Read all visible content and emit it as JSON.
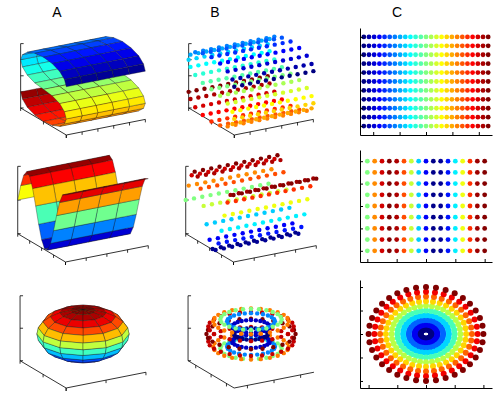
{
  "column_titles": [
    "A",
    "B",
    "C"
  ],
  "chart_data": [
    {
      "type": "surface",
      "profile_x": [
        1,
        0.92,
        0.71,
        0.38,
        0,
        -0.38,
        -0.71,
        -0.92,
        -1,
        -0.92,
        -0.71,
        -0.38,
        0,
        0.38,
        0.71,
        0.92,
        1,
        0.92,
        0.71,
        0.38,
        0,
        -0.38,
        -0.71,
        -0.92,
        -1
      ],
      "profile_z": [
        1,
        1.38,
        1.71,
        1.92,
        2,
        1.92,
        1.71,
        1.38,
        1,
        0.62,
        0.29,
        0.08,
        0,
        -0.08,
        -0.29,
        -0.62,
        -1,
        -1.38,
        -1.71,
        -1.92,
        -2,
        -1.92,
        -1.71,
        -1.38,
        -1
      ],
      "c": [
        -4.71,
        -4.32,
        -3.93,
        -3.53,
        -3.14,
        -2.75,
        -2.36,
        -1.96,
        -1.57,
        -1.18,
        -0.79,
        -0.39,
        0,
        0.39,
        0.79,
        1.18,
        1.57,
        1.96,
        2.36,
        2.75,
        3.14,
        3.53,
        3.93,
        4.32,
        4.71
      ],
      "depth": [
        0,
        1,
        2,
        3,
        4,
        5
      ],
      "xlim": [
        -1,
        1
      ],
      "ylim": [
        0,
        5
      ],
      "zlim": [
        -2,
        2
      ],
      "xticks": [
        -1,
        0,
        1
      ],
      "yticks": [
        0,
        1,
        2,
        3,
        4,
        5
      ],
      "zticks": [
        -2,
        -1,
        0,
        1,
        2
      ],
      "clim": [
        -4.71,
        4.71
      ],
      "tick_labels": false
    },
    {
      "type": "surface",
      "profile_x": [
        1,
        0.92,
        0.71,
        0.38,
        0,
        -0.38,
        -0.71,
        -0.92,
        -1,
        -0.92,
        -0.71,
        -0.38,
        0,
        0.38,
        0.71,
        0.92,
        1,
        0.92,
        0.71,
        0.38,
        0,
        -0.38,
        -0.71,
        -0.92,
        -1
      ],
      "profile_z": [
        1,
        1.38,
        1.71,
        1.92,
        2,
        1.92,
        1.71,
        1.38,
        1,
        0.62,
        0.29,
        0.08,
        0,
        -0.08,
        -0.29,
        -0.62,
        -1,
        -1.38,
        -1.71,
        -1.92,
        -2,
        -1.92,
        -1.71,
        -1.38,
        -1
      ],
      "c": [
        -4.71,
        -4.32,
        -3.93,
        -3.53,
        -3.14,
        -2.75,
        -2.36,
        -1.96,
        -1.57,
        -1.18,
        -0.79,
        -0.39,
        0,
        0.39,
        0.79,
        1.18,
        1.57,
        1.96,
        2.36,
        2.75,
        3.14,
        3.53,
        3.93,
        4.32,
        4.71
      ],
      "depth": [
        0,
        0.5,
        1,
        1.5,
        2,
        2.5,
        3,
        3.5,
        4,
        4.5,
        5
      ],
      "xlim": [
        -1,
        1
      ],
      "ylim": [
        0,
        5
      ],
      "zlim": [
        -2,
        2
      ],
      "xticks": [
        -1,
        0,
        1
      ],
      "yticks": [
        0,
        1,
        2,
        3,
        4,
        5
      ],
      "zticks": [
        -2,
        -1,
        0,
        1,
        2
      ],
      "clim": [
        -4.71,
        4.71
      ],
      "marker": "circle",
      "tick_labels": false
    },
    {
      "type": "grid",
      "x": [
        -4.71,
        -4.32,
        -3.93,
        -3.53,
        -3.14,
        -2.75,
        -2.36,
        -1.96,
        -1.57,
        -1.18,
        -0.79,
        -0.39,
        0,
        0.39,
        0.79,
        1.18,
        1.57,
        1.96,
        2.36,
        2.75,
        3.14,
        3.53,
        3.93,
        4.32,
        4.71
      ],
      "y": [
        0,
        0.5,
        1,
        1.5,
        2,
        2.5,
        3,
        3.5,
        4,
        4.5,
        5
      ],
      "xlim": [
        -5,
        5
      ],
      "ylim": [
        -0.5,
        5.5
      ],
      "xticks": [
        -4,
        -2,
        0,
        2,
        4
      ],
      "yticks": [
        0,
        1,
        2,
        3,
        4,
        5
      ],
      "clim": [
        -4.71,
        4.71
      ],
      "marker": "circle",
      "tick_labels": false
    },
    {
      "type": "surface",
      "profile_x": [
        0,
        0.5,
        1,
        1.5,
        2,
        2.5,
        3,
        3.5,
        4,
        4.5,
        5,
        5.5,
        6,
        6.5,
        7,
        7.5,
        8
      ],
      "profile_z": [
        0,
        0.48,
        0.84,
        1,
        0.91,
        0.6,
        0.14,
        -0.35,
        -0.76,
        -0.98,
        -0.96,
        -0.71,
        -0.28,
        0.22,
        0.66,
        0.94,
        0.99
      ],
      "depth": [
        0,
        1,
        2,
        3,
        4
      ],
      "xlim": [
        0,
        8
      ],
      "ylim": [
        0,
        4
      ],
      "zlim": [
        -1,
        1
      ],
      "xticks": [
        0,
        2,
        4,
        6,
        8
      ],
      "yticks": [
        0,
        1,
        2,
        3,
        4
      ],
      "zticks": [
        -1,
        0,
        1
      ],
      "clim": [
        -1,
        1
      ],
      "tick_labels": false
    },
    {
      "type": "surface",
      "profile_x": [
        0,
        0.5,
        1,
        1.5,
        2,
        2.5,
        3,
        3.5,
        4,
        4.5,
        5,
        5.5,
        6,
        6.5,
        7,
        7.5,
        8
      ],
      "profile_z": [
        0,
        0.48,
        0.84,
        1,
        0.91,
        0.6,
        0.14,
        -0.35,
        -0.76,
        -0.98,
        -0.96,
        -0.71,
        -0.28,
        0.22,
        0.66,
        0.94,
        0.99
      ],
      "depth": [
        0,
        0.4,
        0.8,
        1.2,
        1.6,
        2,
        2.4,
        2.8,
        3.2,
        3.6,
        4
      ],
      "xlim": [
        0,
        8
      ],
      "ylim": [
        0,
        4
      ],
      "zlim": [
        -1,
        1
      ],
      "xticks": [
        0,
        2,
        4,
        6,
        8
      ],
      "yticks": [
        0,
        1,
        2,
        3,
        4
      ],
      "zticks": [
        -1,
        0,
        1
      ],
      "clim": [
        -1,
        1
      ],
      "marker": "circle",
      "tick_labels": false
    },
    {
      "type": "grid",
      "x": [
        0,
        0.5,
        1,
        1.5,
        2,
        2.5,
        3,
        3.5,
        4,
        4.5,
        5,
        5.5,
        6,
        6.5,
        7,
        7.5,
        8
      ],
      "y": [
        0,
        0.5,
        1,
        1.5,
        2,
        2.5,
        3,
        3.5,
        4
      ],
      "c": [
        0,
        0.48,
        0.84,
        1,
        0.91,
        0.6,
        0.14,
        -0.35,
        -0.76,
        -0.98,
        -0.96,
        -0.71,
        -0.28,
        0.22,
        0.66,
        0.94,
        0.99
      ],
      "xlim": [
        -0.5,
        8.5
      ],
      "ylim": [
        -0.5,
        4.5
      ],
      "xticks": [
        0,
        2,
        4,
        6,
        8
      ],
      "yticks": [
        0,
        1,
        2,
        3,
        4
      ],
      "clim": [
        -1,
        1
      ],
      "marker": "circle",
      "tick_labels": false
    },
    {
      "type": "revolution",
      "profile_r": [
        0,
        0.26,
        0.5,
        0.71,
        0.87,
        0.97,
        1,
        0.97,
        0.87,
        0.71,
        0.5,
        0.26,
        0
      ],
      "profile_z": [
        -0.75,
        -0.72,
        -0.65,
        -0.53,
        -0.38,
        -0.19,
        0,
        0.19,
        0.38,
        0.53,
        0.65,
        0.72,
        0.75
      ],
      "theta": [
        0,
        30,
        60,
        90,
        120,
        150,
        180,
        210,
        240,
        270,
        300,
        330,
        360
      ],
      "xlim": [
        -1,
        1
      ],
      "ylim": [
        -1,
        1
      ],
      "zlim": [
        -1,
        1
      ],
      "xticks": [
        -1,
        0,
        1
      ],
      "yticks": [
        -1,
        0,
        1
      ],
      "zticks": [
        -1,
        0,
        1
      ],
      "clim": [
        -0.75,
        0.75
      ],
      "tick_labels": false
    },
    {
      "type": "revolution",
      "profile_r": [
        1.45,
        1.39,
        1.23,
        1,
        0.78,
        0.61,
        0.55,
        0.61,
        0.78,
        1,
        1.23,
        1.39
      ],
      "profile_z": [
        0,
        0.23,
        0.39,
        0.45,
        0.39,
        0.23,
        0,
        -0.23,
        -0.39,
        -0.45,
        -0.39,
        -0.23
      ],
      "c": [
        1.45,
        1.39,
        1.23,
        1,
        0.78,
        0.61,
        0.55,
        0.61,
        0.78,
        1,
        1.23,
        1.39
      ],
      "theta": [
        0,
        15,
        30,
        45,
        60,
        75,
        90,
        105,
        120,
        135,
        150,
        165,
        180,
        195,
        210,
        225,
        240,
        255,
        270,
        285,
        300,
        315,
        330,
        345
      ],
      "xlim": [
        -1.5,
        1.5
      ],
      "ylim": [
        -1.5,
        1.5
      ],
      "zlim": [
        -1,
        1
      ],
      "xticks": [
        -1,
        0,
        1
      ],
      "yticks": [
        -1,
        0,
        1
      ],
      "zticks": [
        -1,
        0,
        1
      ],
      "clim": [
        0.55,
        1.45
      ],
      "marker": "circle",
      "tick_labels": false
    },
    {
      "type": "radial",
      "r": [
        0.1,
        0.2,
        0.3,
        0.4,
        0.5,
        0.6,
        0.7,
        0.8,
        0.9,
        1
      ],
      "theta": [
        0,
        10,
        20,
        30,
        40,
        50,
        60,
        70,
        80,
        90,
        100,
        110,
        120,
        130,
        140,
        150,
        160,
        170,
        180,
        190,
        200,
        210,
        220,
        230,
        240,
        250,
        260,
        270,
        280,
        290,
        300,
        310,
        320,
        330,
        340,
        350
      ],
      "xlim": [
        -1.15,
        1.15
      ],
      "ylim": [
        -1.15,
        1.15
      ],
      "xticks": [
        -1,
        -0.5,
        0,
        0.5,
        1
      ],
      "yticks": [
        -1,
        -0.5,
        0,
        0.5,
        1
      ],
      "clim": [
        0.1,
        1
      ],
      "marker": "circle",
      "tick_labels": false
    }
  ]
}
